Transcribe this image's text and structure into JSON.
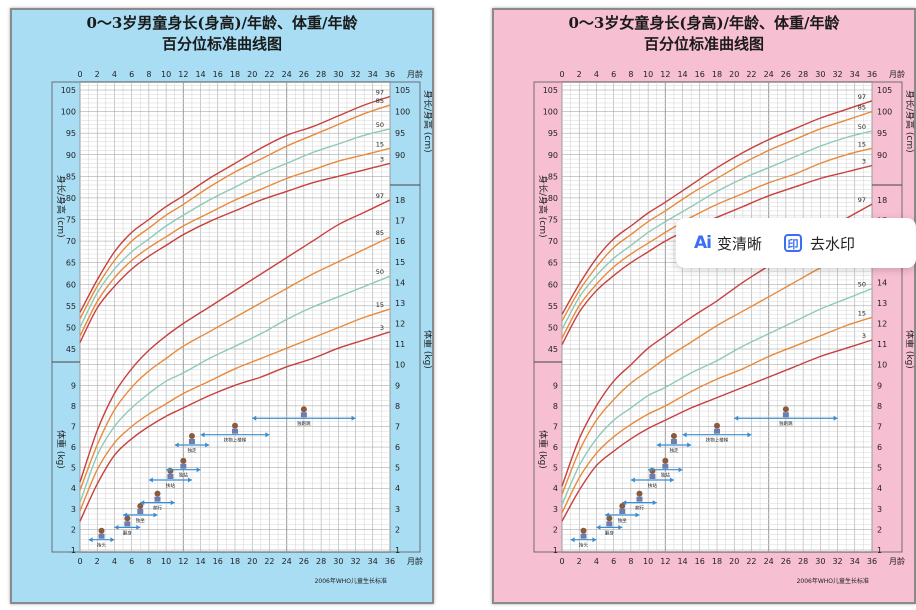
{
  "colors": {
    "boys_bg": "#a9ddf4",
    "girls_bg": "#f7bfd2",
    "p97": "#c8403d",
    "p85": "#e88a3c",
    "p50": "#8fc9b8",
    "p15": "#e88a3c",
    "p3": "#c8403d",
    "milestone": "#3a8ed0"
  },
  "panels": [
    {
      "title_line1": "0～3岁男童身长(身高)/年龄、体重/年龄",
      "title_line2": "百分位标准曲线图",
      "x_ticks": [
        "0",
        "2",
        "4",
        "6",
        "8",
        "10",
        "12",
        "14",
        "16",
        "18",
        "20",
        "22",
        "24",
        "26",
        "28",
        "30",
        "32",
        "34",
        "36"
      ],
      "x_unit": "月龄",
      "y_left_top_ticks": [
        "45",
        "50",
        "55",
        "60",
        "65",
        "70",
        "75",
        "80",
        "85",
        "90",
        "95",
        "100",
        "105"
      ],
      "y_left_bottom_ticks": [
        "1",
        "2",
        "3",
        "4",
        "5",
        "6",
        "7",
        "8",
        "9"
      ],
      "y_right_top_ticks": [
        "90",
        "95",
        "100",
        "105"
      ],
      "y_right_bottom_ticks": [
        "1",
        "2",
        "3",
        "4",
        "5",
        "6",
        "7",
        "8",
        "9",
        "10",
        "11",
        "12",
        "13",
        "14",
        "15",
        "16",
        "17",
        "18"
      ],
      "left_axis_top_label": "身长/身高 (cm)",
      "left_axis_bottom_label": "体重 (kg)",
      "right_axis_top_label": "身长/身高 (cm)",
      "right_axis_bottom_label": "体重 (kg)",
      "percentile_labels": [
        "97",
        "85",
        "50",
        "15",
        "3"
      ],
      "milestones": [
        "抬头",
        "翻身",
        "独坐",
        "爬行",
        "扶站",
        "独站",
        "独走",
        "扶物上楼梯",
        "独跑跳"
      ],
      "source_note": "2006年WHO儿童生长标准"
    },
    {
      "title_line1": "0～3岁女童身长(身高)/年龄、体重/年龄",
      "title_line2": "百分位标准曲线图",
      "x_ticks": [
        "0",
        "2",
        "4",
        "6",
        "8",
        "10",
        "12",
        "14",
        "16",
        "18",
        "20",
        "22",
        "24",
        "26",
        "28",
        "30",
        "32",
        "34",
        "36"
      ],
      "x_unit": "月龄",
      "y_left_top_ticks": [
        "45",
        "50",
        "55",
        "60",
        "65",
        "70",
        "75",
        "80",
        "85",
        "90",
        "95",
        "100",
        "105"
      ],
      "y_left_bottom_ticks": [
        "1",
        "2",
        "3",
        "4",
        "5",
        "6",
        "7",
        "8",
        "9"
      ],
      "y_right_top_ticks": [
        "90",
        "95",
        "100",
        "105"
      ],
      "y_right_bottom_ticks": [
        "1",
        "2",
        "3",
        "4",
        "5",
        "6",
        "7",
        "8",
        "9",
        "10",
        "11",
        "12",
        "13",
        "14",
        "15",
        "16",
        "17",
        "18"
      ],
      "left_axis_top_label": "身长/身高 (cm)",
      "left_axis_bottom_label": "体重 (kg)",
      "right_axis_top_label": "身长/身高 (cm)",
      "right_axis_bottom_label": "体重 (kg)",
      "percentile_labels": [
        "97",
        "85",
        "50",
        "15",
        "3"
      ],
      "milestones": [
        "抬头",
        "翻身",
        "独坐",
        "爬行",
        "扶站",
        "独站",
        "独走",
        "扶物上楼梯",
        "独跑跳"
      ],
      "source_note": "2006年WHO儿童生长标准"
    }
  ],
  "chart_data": [
    {
      "type": "line",
      "x": [
        0,
        2,
        4,
        6,
        8,
        10,
        12,
        15,
        18,
        21,
        24,
        27,
        30,
        33,
        36
      ],
      "xlim": [
        0,
        36
      ],
      "length_ylim": [
        45,
        105
      ],
      "weight_ylim": [
        1,
        18
      ],
      "length_series": [
        {
          "name": "97",
          "values": [
            53.5,
            61,
            67.5,
            72,
            75,
            78,
            80.5,
            84.5,
            88,
            91.5,
            94.5,
            96.5,
            99,
            101.5,
            103.5
          ]
        },
        {
          "name": "85",
          "values": [
            52,
            59.5,
            65.5,
            70,
            73,
            76,
            78.5,
            82.5,
            86,
            89,
            92,
            94.5,
            97,
            99.5,
            101.5
          ]
        },
        {
          "name": "50",
          "values": [
            50,
            58,
            63.5,
            67.5,
            70.5,
            73.5,
            76,
            79.5,
            82.5,
            85.5,
            88,
            90.5,
            92.5,
            94.5,
            96
          ]
        },
        {
          "name": "15",
          "values": [
            48,
            56,
            61.5,
            65.5,
            68.5,
            71,
            73.5,
            76.5,
            79.5,
            82,
            84.5,
            86.5,
            88.5,
            90,
            91.5
          ]
        },
        {
          "name": "3",
          "values": [
            46.5,
            54.5,
            59.5,
            63.5,
            66.5,
            69,
            71.5,
            74.5,
            77,
            79.5,
            81.5,
            83.5,
            85,
            86.5,
            88
          ]
        }
      ],
      "weight_series": [
        {
          "name": "97",
          "values": [
            4.3,
            6.8,
            8.6,
            9.8,
            10.7,
            11.4,
            12,
            12.8,
            13.6,
            14.4,
            15.2,
            16,
            16.8,
            17.4,
            18
          ]
        },
        {
          "name": "85",
          "values": [
            3.9,
            6.1,
            7.8,
            8.9,
            9.7,
            10.3,
            10.9,
            11.6,
            12.3,
            13,
            13.7,
            14.4,
            15,
            15.6,
            16.2
          ]
        },
        {
          "name": "50",
          "values": [
            3.3,
            5.6,
            7,
            7.9,
            8.6,
            9.2,
            9.6,
            10.3,
            10.9,
            11.5,
            12.2,
            12.8,
            13.3,
            13.8,
            14.3
          ]
        },
        {
          "name": "15",
          "values": [
            2.9,
            4.9,
            6.2,
            7,
            7.6,
            8.1,
            8.6,
            9.2,
            9.8,
            10.3,
            10.8,
            11.3,
            11.8,
            12.3,
            12.7
          ]
        },
        {
          "name": "3",
          "values": [
            2.4,
            4.2,
            5.6,
            6.4,
            7,
            7.5,
            7.9,
            8.5,
            9,
            9.4,
            9.9,
            10.3,
            10.8,
            11.2,
            11.6
          ]
        }
      ]
    },
    {
      "type": "line",
      "x": [
        0,
        2,
        4,
        6,
        8,
        10,
        12,
        15,
        18,
        21,
        24,
        27,
        30,
        33,
        36
      ],
      "xlim": [
        0,
        36
      ],
      "length_ylim": [
        45,
        105
      ],
      "weight_ylim": [
        1,
        18
      ],
      "length_series": [
        {
          "name": "97",
          "values": [
            53,
            60,
            66,
            70.5,
            73.5,
            76.5,
            79,
            83,
            87,
            90.5,
            93.5,
            96,
            98.5,
            100.5,
            102.5
          ]
        },
        {
          "name": "85",
          "values": [
            51.5,
            58.5,
            64,
            68.5,
            71.5,
            74.5,
            77,
            81,
            84.5,
            88,
            91,
            93.5,
            96,
            98,
            100
          ]
        },
        {
          "name": "50",
          "values": [
            49.5,
            57,
            62,
            66,
            69,
            72,
            74.5,
            78,
            81.5,
            84.5,
            87,
            89.5,
            92,
            94,
            95.5
          ]
        },
        {
          "name": "15",
          "values": [
            47.5,
            55,
            60,
            64,
            67,
            69.5,
            72,
            75.5,
            78.5,
            81,
            83.5,
            85.5,
            88,
            90,
            91.5
          ]
        },
        {
          "name": "3",
          "values": [
            46,
            53.5,
            58.5,
            62,
            65,
            67.5,
            70,
            73,
            75.5,
            78,
            80.5,
            82.5,
            84.5,
            86,
            87.5
          ]
        }
      ],
      "weight_series": [
        {
          "name": "97",
          "values": [
            4.1,
            6.4,
            8,
            9.2,
            10,
            10.8,
            11.4,
            12.3,
            13.1,
            14,
            14.8,
            15.6,
            16.4,
            17.1,
            17.8
          ]
        },
        {
          "name": "85",
          "values": [
            3.7,
            5.8,
            7.3,
            8.3,
            9.1,
            9.7,
            10.3,
            11.1,
            11.9,
            12.6,
            13.3,
            14,
            14.7,
            15.3,
            15.9
          ]
        },
        {
          "name": "50",
          "values": [
            3.2,
            5.1,
            6.4,
            7.3,
            7.9,
            8.5,
            8.9,
            9.6,
            10.2,
            10.9,
            11.5,
            12.1,
            12.7,
            13.2,
            13.7
          ]
        },
        {
          "name": "15",
          "values": [
            2.8,
            4.5,
            5.7,
            6.5,
            7.1,
            7.6,
            8,
            8.7,
            9.3,
            9.8,
            10.4,
            10.9,
            11.4,
            11.9,
            12.3
          ]
        },
        {
          "name": "3",
          "values": [
            2.4,
            3.9,
            5.1,
            5.8,
            6.4,
            6.9,
            7.3,
            7.9,
            8.4,
            8.9,
            9.4,
            9.9,
            10.4,
            10.8,
            11.2
          ]
        }
      ]
    }
  ],
  "watermark_toolbar": {
    "ai_glyph": "Ai",
    "enhance_label": "变清晰",
    "box_glyph": "印",
    "remove_label": "去水印"
  }
}
